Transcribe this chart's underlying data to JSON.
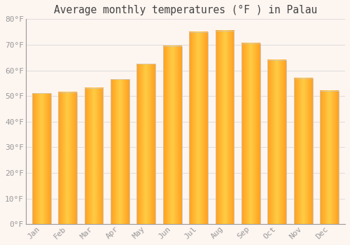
{
  "title": "Average monthly temperatures (°F ) in Palau",
  "months": [
    "Jan",
    "Feb",
    "Mar",
    "Apr",
    "May",
    "Jun",
    "Jul",
    "Aug",
    "Sep",
    "Oct",
    "Nov",
    "Dec"
  ],
  "values": [
    51,
    51.5,
    53,
    56.5,
    62.5,
    69.5,
    75,
    75.5,
    70.5,
    64,
    57,
    52
  ],
  "ylim": [
    0,
    80
  ],
  "yticks": [
    0,
    10,
    20,
    30,
    40,
    50,
    60,
    70,
    80
  ],
  "ytick_labels": [
    "0°F",
    "10°F",
    "20°F",
    "30°F",
    "40°F",
    "50°F",
    "60°F",
    "70°F",
    "80°F"
  ],
  "background_color": "#fdf5f0",
  "plot_bg_color": "#fdf5f0",
  "grid_color": "#dddddd",
  "title_fontsize": 10.5,
  "tick_fontsize": 8,
  "tick_color": "#999999",
  "bar_color_center": "#FFCC44",
  "bar_color_edge": "#FFA020",
  "bar_edgecolor": "#cccccc",
  "bar_width": 0.72
}
